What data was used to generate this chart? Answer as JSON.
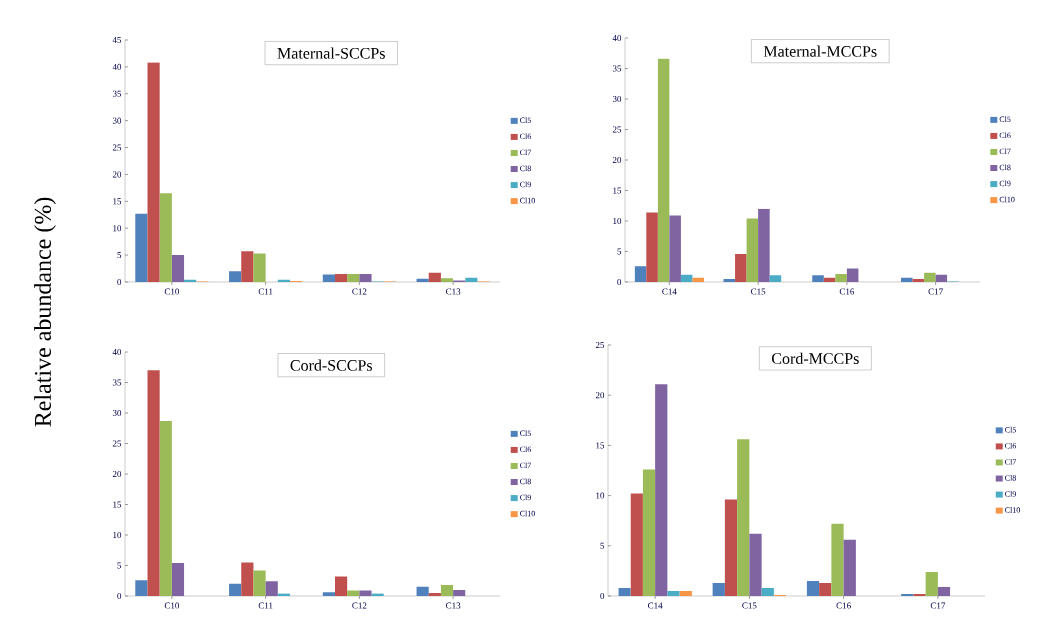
{
  "chart_data": [
    {
      "type": "bar",
      "title": "Maternal-SCCPs",
      "ylabel": "Relative    abundance (%)",
      "categories": [
        "C10",
        "C11",
        "C12",
        "C13"
      ],
      "ylim": [
        0,
        45
      ],
      "yticks": [
        0,
        5,
        10,
        15,
        20,
        25,
        30,
        35,
        40,
        45
      ],
      "legend": "right",
      "grid": false,
      "series": [
        {
          "name": "Cl5",
          "color": "#4f81bd",
          "values": [
            12.7,
            2.0,
            1.4,
            0.6
          ]
        },
        {
          "name": "Cl6",
          "color": "#c0504d",
          "values": [
            40.8,
            5.7,
            1.5,
            1.7
          ]
        },
        {
          "name": "Cl7",
          "color": "#9bbb59",
          "values": [
            16.5,
            5.3,
            1.5,
            0.7
          ]
        },
        {
          "name": "Cl8",
          "color": "#8064a2",
          "values": [
            5.0,
            0,
            1.5,
            0.3
          ]
        },
        {
          "name": "Cl9",
          "color": "#4bacc6",
          "values": [
            0.4,
            0.4,
            0.1,
            0.8
          ]
        },
        {
          "name": "Cl10",
          "color": "#f79646",
          "values": [
            0.1,
            0.2,
            0.1,
            0.1
          ]
        }
      ]
    },
    {
      "type": "bar",
      "title": "Maternal-MCCPs",
      "categories": [
        "C14",
        "C15",
        "C16",
        "C17"
      ],
      "ylim": [
        0,
        40
      ],
      "yticks": [
        0,
        5,
        10,
        15,
        20,
        25,
        30,
        35,
        40
      ],
      "legend": "right",
      "grid": false,
      "series": [
        {
          "name": "Cl5",
          "color": "#4f81bd",
          "values": [
            2.6,
            0.5,
            1.1,
            0.7
          ]
        },
        {
          "name": "Cl6",
          "color": "#c0504d",
          "values": [
            11.4,
            4.6,
            0.7,
            0.5
          ]
        },
        {
          "name": "Cl7",
          "color": "#9bbb59",
          "values": [
            36.6,
            10.4,
            1.3,
            1.5
          ]
        },
        {
          "name": "Cl8",
          "color": "#8064a2",
          "values": [
            10.9,
            12.0,
            2.2,
            1.2
          ]
        },
        {
          "name": "Cl9",
          "color": "#4bacc6",
          "values": [
            1.2,
            1.1,
            0,
            0.1
          ]
        },
        {
          "name": "Cl10",
          "color": "#f79646",
          "values": [
            0.7,
            0,
            0,
            0
          ]
        }
      ]
    },
    {
      "type": "bar",
      "title": "Cord-SCCPs",
      "categories": [
        "C10",
        "C11",
        "C12",
        "C13"
      ],
      "ylim": [
        0,
        40
      ],
      "yticks": [
        0,
        5,
        10,
        15,
        20,
        25,
        30,
        35,
        40
      ],
      "legend": "right",
      "grid": false,
      "series": [
        {
          "name": "Cl5",
          "color": "#4f81bd",
          "values": [
            2.6,
            2.0,
            0.6,
            1.5
          ]
        },
        {
          "name": "Cl6",
          "color": "#c0504d",
          "values": [
            37.0,
            5.5,
            3.2,
            0.5
          ]
        },
        {
          "name": "Cl7",
          "color": "#9bbb59",
          "values": [
            28.7,
            4.2,
            0.9,
            1.8
          ]
        },
        {
          "name": "Cl8",
          "color": "#8064a2",
          "values": [
            5.4,
            2.4,
            0.9,
            1.0
          ]
        },
        {
          "name": "Cl9",
          "color": "#4bacc6",
          "values": [
            0,
            0.4,
            0.4,
            0
          ]
        },
        {
          "name": "Cl10",
          "color": "#f79646",
          "values": [
            0,
            0,
            0,
            0
          ]
        }
      ]
    },
    {
      "type": "bar",
      "title": "Cord-MCCPs",
      "categories": [
        "C14",
        "C15",
        "C16",
        "C17"
      ],
      "ylim": [
        0,
        25
      ],
      "yticks": [
        0,
        5,
        10,
        15,
        20,
        25
      ],
      "legend": "right",
      "grid": false,
      "series": [
        {
          "name": "Cl5",
          "color": "#4f81bd",
          "values": [
            0.8,
            1.3,
            1.5,
            0.2
          ]
        },
        {
          "name": "Cl6",
          "color": "#c0504d",
          "values": [
            10.2,
            9.6,
            1.3,
            0.2
          ]
        },
        {
          "name": "Cl7",
          "color": "#9bbb59",
          "values": [
            12.6,
            15.6,
            7.2,
            2.4
          ]
        },
        {
          "name": "Cl8",
          "color": "#8064a2",
          "values": [
            21.1,
            6.2,
            5.6,
            0.9
          ]
        },
        {
          "name": "Cl9",
          "color": "#4bacc6",
          "values": [
            0.5,
            0.8,
            0,
            0
          ]
        },
        {
          "name": "Cl10",
          "color": "#f79646",
          "values": [
            0.5,
            0.1,
            0,
            0
          ]
        }
      ]
    }
  ]
}
